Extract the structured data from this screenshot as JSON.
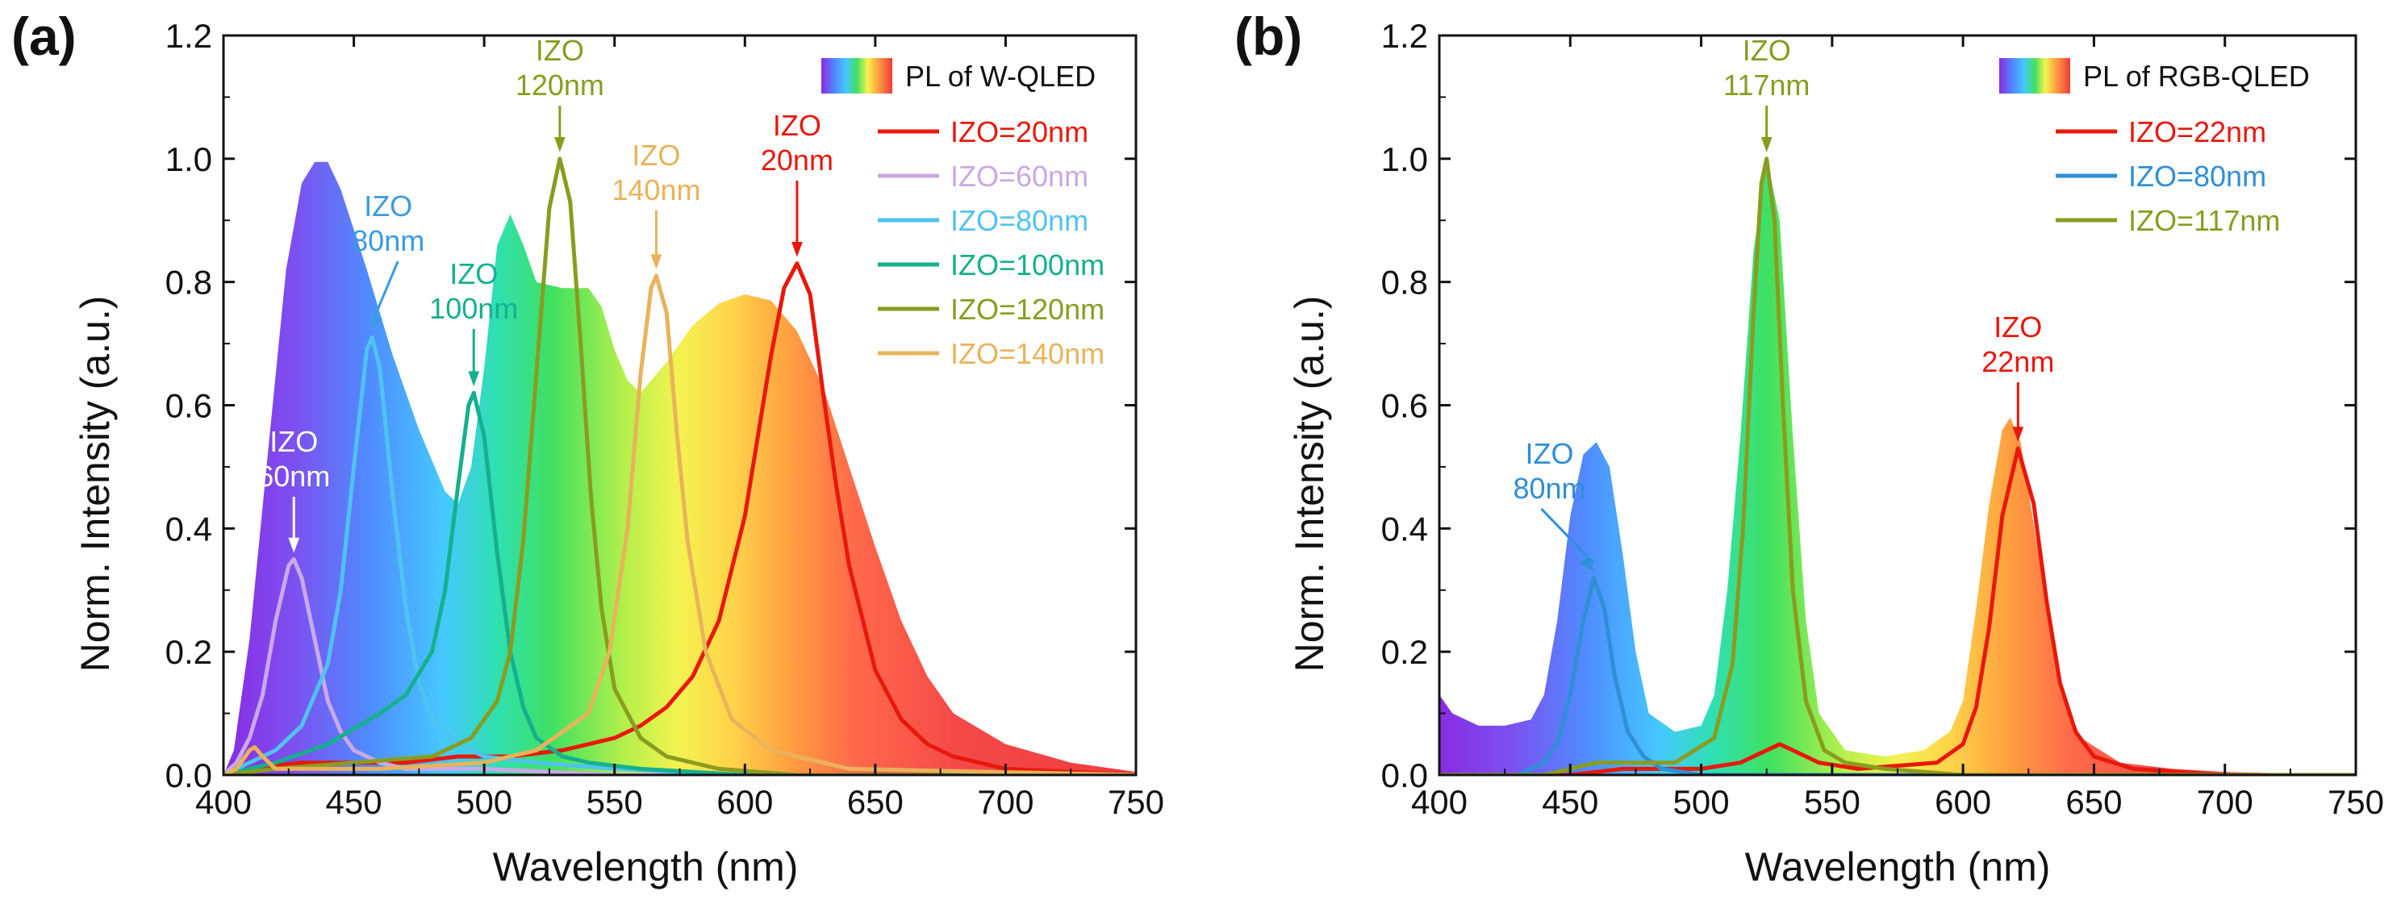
{
  "chart_data": [
    {
      "panel_label": "(a)",
      "type": "line",
      "xlabel": "Wavelength (nm)",
      "ylabel": "Norm. Intensity (a.u.)",
      "xlim": [
        400,
        750
      ],
      "ylim": [
        0,
        1.2
      ],
      "xticks": [
        "400",
        "450",
        "500",
        "550",
        "600",
        "650",
        "700",
        "750"
      ],
      "yticks": [
        "0.0",
        "0.2",
        "0.4",
        "0.6",
        "0.8",
        "1.0",
        "1.2"
      ],
      "background_spectrum": {
        "label": "PL of W-QLED",
        "points": [
          [
            400,
            0.0
          ],
          [
            404,
            0.04
          ],
          [
            410,
            0.22
          ],
          [
            417,
            0.52
          ],
          [
            424,
            0.82
          ],
          [
            430,
            0.96
          ],
          [
            435,
            0.995
          ],
          [
            440,
            0.995
          ],
          [
            445,
            0.95
          ],
          [
            455,
            0.82
          ],
          [
            465,
            0.68
          ],
          [
            475,
            0.56
          ],
          [
            485,
            0.46
          ],
          [
            490,
            0.44
          ],
          [
            495,
            0.5
          ],
          [
            500,
            0.66
          ],
          [
            505,
            0.86
          ],
          [
            510,
            0.91
          ],
          [
            515,
            0.86
          ],
          [
            520,
            0.8
          ],
          [
            530,
            0.79
          ],
          [
            540,
            0.79
          ],
          [
            545,
            0.76
          ],
          [
            550,
            0.69
          ],
          [
            555,
            0.64
          ],
          [
            560,
            0.62
          ],
          [
            570,
            0.67
          ],
          [
            580,
            0.73
          ],
          [
            590,
            0.765
          ],
          [
            600,
            0.78
          ],
          [
            610,
            0.77
          ],
          [
            620,
            0.72
          ],
          [
            630,
            0.63
          ],
          [
            640,
            0.5
          ],
          [
            650,
            0.37
          ],
          [
            660,
            0.25
          ],
          [
            670,
            0.16
          ],
          [
            680,
            0.1
          ],
          [
            700,
            0.05
          ],
          [
            725,
            0.02
          ],
          [
            750,
            0.005
          ]
        ]
      },
      "series": [
        {
          "name": "IZO=20nm",
          "color": "#e8180c",
          "peak": [
            620,
            0.83
          ],
          "x": [
            400,
            410,
            430,
            450,
            470,
            490,
            510,
            530,
            540,
            550,
            560,
            570,
            580,
            590,
            600,
            605,
            610,
            615,
            620,
            625,
            630,
            635,
            640,
            650,
            660,
            670,
            680,
            700,
            750
          ],
          "y": [
            0.0,
            0.01,
            0.02,
            0.02,
            0.02,
            0.03,
            0.03,
            0.04,
            0.05,
            0.06,
            0.08,
            0.11,
            0.16,
            0.25,
            0.42,
            0.55,
            0.68,
            0.79,
            0.83,
            0.78,
            0.62,
            0.47,
            0.34,
            0.17,
            0.09,
            0.05,
            0.03,
            0.01,
            0.0
          ]
        },
        {
          "name": "IZO=60nm",
          "color": "#c9a9e6",
          "peak": [
            427,
            0.35
          ],
          "x": [
            400,
            405,
            410,
            415,
            420,
            425,
            427,
            430,
            435,
            440,
            445,
            450,
            460,
            470,
            500,
            550,
            750
          ],
          "y": [
            0.0,
            0.02,
            0.06,
            0.13,
            0.25,
            0.34,
            0.35,
            0.32,
            0.22,
            0.12,
            0.07,
            0.04,
            0.02,
            0.01,
            0.01,
            0.0,
            0.0
          ]
        },
        {
          "name": "IZO=80nm",
          "color": "#4fc3ef",
          "peak": [
            457,
            0.71
          ],
          "x": [
            400,
            410,
            420,
            430,
            440,
            445,
            450,
            455,
            457,
            460,
            465,
            470,
            475,
            480,
            490,
            500,
            520,
            550,
            600,
            750
          ],
          "y": [
            0.0,
            0.02,
            0.04,
            0.08,
            0.18,
            0.3,
            0.5,
            0.69,
            0.71,
            0.66,
            0.45,
            0.27,
            0.15,
            0.09,
            0.05,
            0.03,
            0.02,
            0.01,
            0.0,
            0.0
          ]
        },
        {
          "name": "IZO=100nm",
          "color": "#15b08e",
          "peak": [
            496,
            0.62
          ],
          "x": [
            400,
            410,
            420,
            440,
            460,
            470,
            480,
            485,
            490,
            494,
            496,
            500,
            505,
            510,
            515,
            520,
            530,
            540,
            560,
            600,
            750
          ],
          "y": [
            0.0,
            0.01,
            0.02,
            0.05,
            0.1,
            0.13,
            0.2,
            0.3,
            0.47,
            0.6,
            0.62,
            0.55,
            0.36,
            0.2,
            0.11,
            0.06,
            0.03,
            0.02,
            0.01,
            0.0,
            0.0
          ]
        },
        {
          "name": "IZO=120nm",
          "color": "#8a9c20",
          "peak": [
            529,
            1.0
          ],
          "x": [
            400,
            420,
            450,
            480,
            495,
            505,
            510,
            515,
            520,
            525,
            529,
            533,
            537,
            541,
            545,
            550,
            560,
            570,
            590,
            620,
            750
          ],
          "y": [
            0.0,
            0.01,
            0.02,
            0.03,
            0.06,
            0.12,
            0.2,
            0.38,
            0.65,
            0.92,
            1.0,
            0.93,
            0.7,
            0.45,
            0.27,
            0.14,
            0.06,
            0.03,
            0.01,
            0.0,
            0.0
          ]
        },
        {
          "name": "IZO=140nm",
          "color": "#e9b35a",
          "peak": [
            566,
            0.81
          ],
          "x": [
            400,
            405,
            410,
            412,
            415,
            420,
            430,
            460,
            500,
            520,
            540,
            548,
            555,
            560,
            564,
            566,
            570,
            574,
            578,
            585,
            595,
            610,
            640,
            750
          ],
          "y": [
            0.0,
            0.01,
            0.04,
            0.045,
            0.03,
            0.01,
            0.01,
            0.01,
            0.02,
            0.04,
            0.1,
            0.2,
            0.4,
            0.65,
            0.79,
            0.81,
            0.75,
            0.55,
            0.38,
            0.2,
            0.09,
            0.04,
            0.01,
            0.0
          ]
        }
      ],
      "annotations": [
        {
          "line1": "IZO",
          "line2": "20nm",
          "color": "#e8180c",
          "x": 620,
          "y": 0.83
        },
        {
          "line1": "IZO",
          "line2": "60nm",
          "color": "#ffffff",
          "x": 427,
          "y": 0.35
        },
        {
          "line1": "IZO",
          "line2": "80nm",
          "color": "#3a9be0",
          "x": 457,
          "y": 0.71
        },
        {
          "line1": "IZO",
          "line2": "100nm",
          "color": "#15b08e",
          "x": 496,
          "y": 0.62
        },
        {
          "line1": "IZO",
          "line2": "120nm",
          "color": "#8a9c20",
          "x": 529,
          "y": 1.0
        },
        {
          "line1": "IZO",
          "line2": "140nm",
          "color": "#e9b35a",
          "x": 566,
          "y": 0.81
        }
      ]
    },
    {
      "panel_label": "(b)",
      "type": "line",
      "xlabel": "Wavelength (nm)",
      "ylabel": "Norm. Intensity (a.u.)",
      "xlim": [
        400,
        750
      ],
      "ylim": [
        0,
        1.2
      ],
      "xticks": [
        "400",
        "450",
        "500",
        "550",
        "600",
        "650",
        "700",
        "750"
      ],
      "yticks": [
        "0.0",
        "0.2",
        "0.4",
        "0.6",
        "0.8",
        "1.0",
        "1.2"
      ],
      "background_spectrum": {
        "label": "PL of RGB-QLED",
        "points": [
          [
            400,
            0.13
          ],
          [
            405,
            0.1
          ],
          [
            415,
            0.08
          ],
          [
            425,
            0.08
          ],
          [
            435,
            0.09
          ],
          [
            440,
            0.13
          ],
          [
            445,
            0.25
          ],
          [
            450,
            0.42
          ],
          [
            455,
            0.52
          ],
          [
            460,
            0.54
          ],
          [
            465,
            0.5
          ],
          [
            470,
            0.36
          ],
          [
            475,
            0.2
          ],
          [
            480,
            0.1
          ],
          [
            490,
            0.07
          ],
          [
            500,
            0.08
          ],
          [
            505,
            0.13
          ],
          [
            510,
            0.3
          ],
          [
            515,
            0.55
          ],
          [
            520,
            0.85
          ],
          [
            525,
            1.0
          ],
          [
            530,
            0.9
          ],
          [
            535,
            0.55
          ],
          [
            540,
            0.25
          ],
          [
            545,
            0.1
          ],
          [
            555,
            0.04
          ],
          [
            570,
            0.03
          ],
          [
            585,
            0.04
          ],
          [
            595,
            0.07
          ],
          [
            600,
            0.12
          ],
          [
            605,
            0.27
          ],
          [
            610,
            0.44
          ],
          [
            615,
            0.56
          ],
          [
            618,
            0.58
          ],
          [
            622,
            0.54
          ],
          [
            628,
            0.38
          ],
          [
            635,
            0.2
          ],
          [
            640,
            0.11
          ],
          [
            645,
            0.06
          ],
          [
            660,
            0.02
          ],
          [
            680,
            0.01
          ],
          [
            700,
            0.005
          ],
          [
            750,
            0.0
          ]
        ]
      },
      "series": [
        {
          "name": "IZO=22nm",
          "color": "#e8180c",
          "peak": [
            621,
            0.53
          ],
          "x": [
            400,
            450,
            470,
            500,
            515,
            525,
            530,
            535,
            545,
            560,
            590,
            600,
            605,
            610,
            615,
            621,
            627,
            632,
            637,
            643,
            650,
            665,
            700,
            750
          ],
          "y": [
            0.0,
            0.0,
            0.01,
            0.01,
            0.02,
            0.04,
            0.05,
            0.04,
            0.02,
            0.01,
            0.02,
            0.05,
            0.11,
            0.24,
            0.42,
            0.53,
            0.44,
            0.28,
            0.15,
            0.07,
            0.03,
            0.01,
            0.0,
            0.0
          ]
        },
        {
          "name": "IZO=80nm",
          "color": "#2f8fd6",
          "peak": [
            459,
            0.32
          ],
          "x": [
            400,
            430,
            440,
            445,
            450,
            455,
            459,
            463,
            467,
            472,
            478,
            485,
            500,
            550,
            750
          ],
          "y": [
            0.0,
            0.0,
            0.02,
            0.05,
            0.13,
            0.25,
            0.32,
            0.27,
            0.16,
            0.07,
            0.03,
            0.01,
            0.0,
            0.0,
            0.0
          ]
        },
        {
          "name": "IZO=117nm",
          "color": "#8a9c20",
          "peak": [
            525,
            1.0
          ],
          "x": [
            400,
            440,
            460,
            470,
            490,
            505,
            512,
            516,
            520,
            523,
            525,
            528,
            531,
            535,
            540,
            547,
            555,
            570,
            600,
            750
          ],
          "y": [
            0.0,
            0.0,
            0.02,
            0.02,
            0.02,
            0.06,
            0.18,
            0.4,
            0.75,
            0.96,
            1.0,
            0.9,
            0.62,
            0.3,
            0.12,
            0.04,
            0.02,
            0.01,
            0.0,
            0.0
          ]
        }
      ],
      "annotations": [
        {
          "line1": "IZO",
          "line2": "117nm",
          "color": "#8a9c20",
          "x": 525,
          "y": 1.0
        },
        {
          "line1": "IZO",
          "line2": "22nm",
          "color": "#e8180c",
          "x": 621,
          "y": 0.53
        },
        {
          "line1": "IZO",
          "line2": "80nm",
          "color": "#2f8fd6",
          "x": 459,
          "y": 0.32
        }
      ]
    }
  ]
}
